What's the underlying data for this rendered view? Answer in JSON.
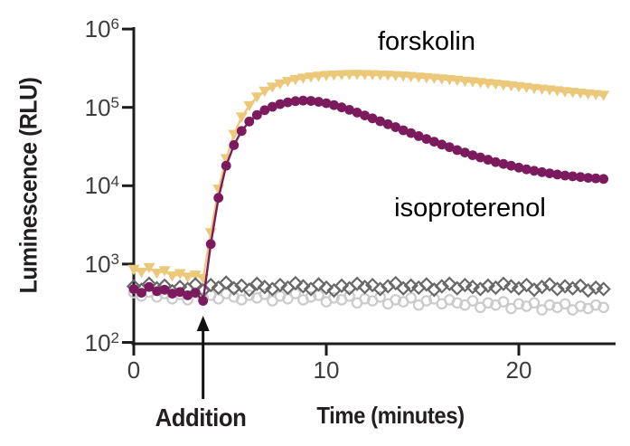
{
  "labels": {
    "addition_annotation": "Addition"
  },
  "chart_data": {
    "type": "scatter",
    "title": "",
    "xlabel": "Time (minutes)",
    "ylabel": "Luminescence (RLU)",
    "x_ticks": [
      0,
      10,
      20
    ],
    "xlim": [
      0,
      25
    ],
    "y_scale": "log10",
    "y_tick_exponents": [
      2,
      3,
      4,
      5,
      6
    ],
    "ylim": [
      100,
      1000000
    ],
    "grid": false,
    "legend_position": "none (labels drawn on plot)",
    "annotation": {
      "text": "Addition",
      "arrow_x_minutes": 3.6
    },
    "colors": {
      "forskolin": "#ECC87B",
      "isoproterenol": "#7B1A5C",
      "control_diamond": "#686868",
      "control_circle": "#CBCBCB",
      "axis": "#1c1c1c",
      "tick_text": "#3d3d3d"
    },
    "t_start": 0,
    "t_step_minutes": 0.4,
    "series": [
      {
        "name": "forskolin",
        "marker": "triangle-down",
        "color": "#ECC87B",
        "line": true,
        "values": [
          850,
          780,
          900,
          760,
          820,
          700,
          750,
          680,
          720,
          650,
          2500,
          9000,
          22000,
          45000,
          75000,
          105000,
          135000,
          160000,
          180000,
          198000,
          213000,
          225000,
          235000,
          243000,
          249000,
          254000,
          257000,
          259500,
          261000,
          261500,
          261000,
          260000,
          258000,
          256000,
          253000,
          250000,
          246000,
          242000,
          238000,
          234000,
          229000,
          225000,
          220000,
          215000,
          211000,
          206000,
          201000,
          197000,
          192000,
          188000,
          183000,
          179000,
          174000,
          170000,
          166000,
          162000,
          158000,
          155000,
          151000,
          148000,
          145000,
          142000
        ]
      },
      {
        "name": "isoproterenol",
        "marker": "circle",
        "color": "#7B1A5C",
        "line": true,
        "values": [
          480,
          430,
          510,
          450,
          470,
          420,
          440,
          400,
          430,
          340,
          1800,
          7000,
          18000,
          33000,
          50000,
          66000,
          80000,
          92000,
          102000,
          110000,
          116000,
          120000,
          122000,
          121000,
          118000,
          113000,
          107000,
          100000,
          93000,
          86000,
          79000,
          72500,
          66500,
          61000,
          56000,
          51000,
          47000,
          43000,
          39500,
          36500,
          33500,
          31000,
          28500,
          26500,
          24500,
          23000,
          21500,
          20000,
          19000,
          18000,
          17000,
          16200,
          15500,
          14900,
          14400,
          13900,
          13500,
          13200,
          12900,
          12600,
          12400,
          12200
        ]
      },
      {
        "name": "untreated-control-diamonds",
        "marker": "diamond-open",
        "color": "#686868",
        "line": false,
        "values": [
          520,
          470,
          560,
          490,
          530,
          450,
          510,
          480,
          550,
          460,
          540,
          500,
          580,
          490,
          530,
          470,
          560,
          510,
          480,
          540,
          500,
          570,
          520,
          480,
          550,
          500,
          460,
          530,
          490,
          560,
          510,
          540,
          480,
          520,
          570,
          490,
          530,
          500,
          550,
          470,
          520,
          560,
          490,
          540,
          510,
          480,
          530,
          500,
          560,
          520,
          490,
          540,
          470,
          510,
          550,
          480,
          520,
          490,
          530,
          460,
          500,
          480
        ]
      },
      {
        "name": "untreated-control-circles",
        "marker": "circle-open",
        "color": "#CBCBCB",
        "line": false,
        "values": [
          430,
          390,
          440,
          380,
          420,
          360,
          410,
          350,
          430,
          370,
          400,
          360,
          420,
          380,
          350,
          400,
          370,
          410,
          340,
          390,
          360,
          420,
          350,
          380,
          400,
          330,
          370,
          350,
          390,
          320,
          360,
          340,
          380,
          310,
          350,
          330,
          370,
          300,
          340,
          360,
          310,
          350,
          320,
          300,
          340,
          280,
          320,
          300,
          330,
          270,
          310,
          290,
          320,
          260,
          300,
          280,
          310,
          260,
          290,
          270,
          300,
          280
        ]
      }
    ]
  }
}
